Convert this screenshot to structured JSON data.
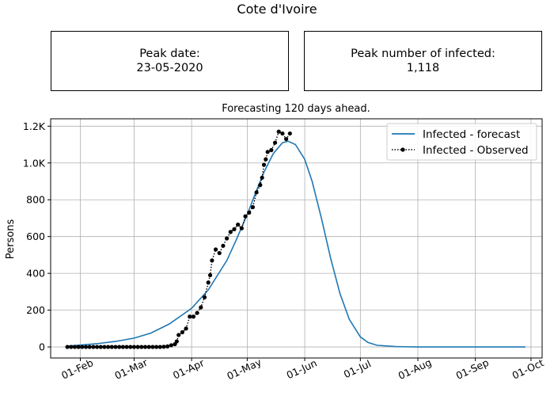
{
  "title": "Cote d'Ivoire",
  "peak_box": {
    "label": "Peak date:",
    "value": "23-05-2020"
  },
  "infected_box": {
    "label": "Peak number of infected:",
    "value": "1,118"
  },
  "chart_data": {
    "type": "line",
    "title": "Forecasting 120 days ahead.",
    "xlabel": "",
    "ylabel": "Persons",
    "ylim": [
      -60,
      1240
    ],
    "xlim": [
      "2020-01-16",
      "2020-10-07"
    ],
    "x_tick_labels": [
      {
        "date": "2020-02-01",
        "label": "01-Feb"
      },
      {
        "date": "2020-03-01",
        "label": "01-Mar"
      },
      {
        "date": "2020-04-01",
        "label": "01-Apr"
      },
      {
        "date": "2020-05-01",
        "label": "01-May"
      },
      {
        "date": "2020-06-01",
        "label": "01-Jun"
      },
      {
        "date": "2020-07-01",
        "label": "01-Jul"
      },
      {
        "date": "2020-08-01",
        "label": "01-Aug"
      },
      {
        "date": "2020-09-01",
        "label": "01-Sep"
      },
      {
        "date": "2020-10-01",
        "label": "01-Oct"
      }
    ],
    "y_ticks": [
      {
        "value": 0,
        "label": "0"
      },
      {
        "value": 200,
        "label": "200"
      },
      {
        "value": 400,
        "label": "400"
      },
      {
        "value": 600,
        "label": "600"
      },
      {
        "value": 800,
        "label": "800"
      },
      {
        "value": 1000,
        "label": "1.0K"
      },
      {
        "value": 1200,
        "label": "1.2K"
      }
    ],
    "grid": true,
    "legend_position": "top-right",
    "series": [
      {
        "name": "Infected - forecast",
        "color": "#1f77b4",
        "style": "solid",
        "points": [
          [
            "2020-01-25",
            5
          ],
          [
            "2020-02-01",
            10
          ],
          [
            "2020-02-10",
            18
          ],
          [
            "2020-02-20",
            30
          ],
          [
            "2020-03-01",
            48
          ],
          [
            "2020-03-10",
            75
          ],
          [
            "2020-03-20",
            125
          ],
          [
            "2020-04-01",
            210
          ],
          [
            "2020-04-10",
            310
          ],
          [
            "2020-04-20",
            470
          ],
          [
            "2020-04-25",
            580
          ],
          [
            "2020-05-01",
            720
          ],
          [
            "2020-05-06",
            850
          ],
          [
            "2020-05-10",
            950
          ],
          [
            "2020-05-15",
            1050
          ],
          [
            "2020-05-20",
            1110
          ],
          [
            "2020-05-23",
            1118
          ],
          [
            "2020-05-27",
            1100
          ],
          [
            "2020-06-01",
            1020
          ],
          [
            "2020-06-05",
            900
          ],
          [
            "2020-06-10",
            700
          ],
          [
            "2020-06-15",
            480
          ],
          [
            "2020-06-20",
            290
          ],
          [
            "2020-06-25",
            150
          ],
          [
            "2020-07-01",
            55
          ],
          [
            "2020-07-05",
            25
          ],
          [
            "2020-07-10",
            9
          ],
          [
            "2020-07-20",
            2
          ],
          [
            "2020-08-01",
            0
          ],
          [
            "2020-09-01",
            0
          ],
          [
            "2020-09-28",
            0
          ]
        ]
      },
      {
        "name": "Infected - Observed",
        "color": "#000000",
        "style": "dotted-markers",
        "points": [
          [
            "2020-01-25",
            0
          ],
          [
            "2020-01-27",
            0
          ],
          [
            "2020-01-29",
            0
          ],
          [
            "2020-01-31",
            0
          ],
          [
            "2020-02-02",
            0
          ],
          [
            "2020-02-04",
            0
          ],
          [
            "2020-02-06",
            0
          ],
          [
            "2020-02-08",
            0
          ],
          [
            "2020-02-10",
            0
          ],
          [
            "2020-02-12",
            0
          ],
          [
            "2020-02-14",
            0
          ],
          [
            "2020-02-16",
            0
          ],
          [
            "2020-02-18",
            0
          ],
          [
            "2020-02-20",
            0
          ],
          [
            "2020-02-22",
            0
          ],
          [
            "2020-02-24",
            0
          ],
          [
            "2020-02-26",
            0
          ],
          [
            "2020-02-28",
            0
          ],
          [
            "2020-03-01",
            0
          ],
          [
            "2020-03-03",
            0
          ],
          [
            "2020-03-05",
            0
          ],
          [
            "2020-03-07",
            0
          ],
          [
            "2020-03-09",
            0
          ],
          [
            "2020-03-11",
            0
          ],
          [
            "2020-03-13",
            0
          ],
          [
            "2020-03-15",
            0
          ],
          [
            "2020-03-17",
            1
          ],
          [
            "2020-03-19",
            3
          ],
          [
            "2020-03-21",
            9
          ],
          [
            "2020-03-23",
            15
          ],
          [
            "2020-03-24",
            30
          ],
          [
            "2020-03-25",
            65
          ],
          [
            "2020-03-27",
            80
          ],
          [
            "2020-03-29",
            100
          ],
          [
            "2020-03-31",
            165
          ],
          [
            "2020-04-02",
            165
          ],
          [
            "2020-04-04",
            185
          ],
          [
            "2020-04-06",
            215
          ],
          [
            "2020-04-08",
            270
          ],
          [
            "2020-04-10",
            350
          ],
          [
            "2020-04-11",
            390
          ],
          [
            "2020-04-12",
            470
          ],
          [
            "2020-04-14",
            530
          ],
          [
            "2020-04-16",
            510
          ],
          [
            "2020-04-18",
            550
          ],
          [
            "2020-04-20",
            590
          ],
          [
            "2020-04-22",
            625
          ],
          [
            "2020-04-24",
            640
          ],
          [
            "2020-04-26",
            665
          ],
          [
            "2020-04-28",
            645
          ],
          [
            "2020-04-30",
            710
          ],
          [
            "2020-05-02",
            730
          ],
          [
            "2020-05-04",
            760
          ],
          [
            "2020-05-06",
            840
          ],
          [
            "2020-05-08",
            880
          ],
          [
            "2020-05-09",
            920
          ],
          [
            "2020-05-10",
            990
          ],
          [
            "2020-05-11",
            1020
          ],
          [
            "2020-05-12",
            1060
          ],
          [
            "2020-05-14",
            1070
          ],
          [
            "2020-05-16",
            1110
          ],
          [
            "2020-05-18",
            1170
          ],
          [
            "2020-05-20",
            1160
          ],
          [
            "2020-05-22",
            1130
          ],
          [
            "2020-05-24",
            1160
          ]
        ]
      }
    ]
  }
}
